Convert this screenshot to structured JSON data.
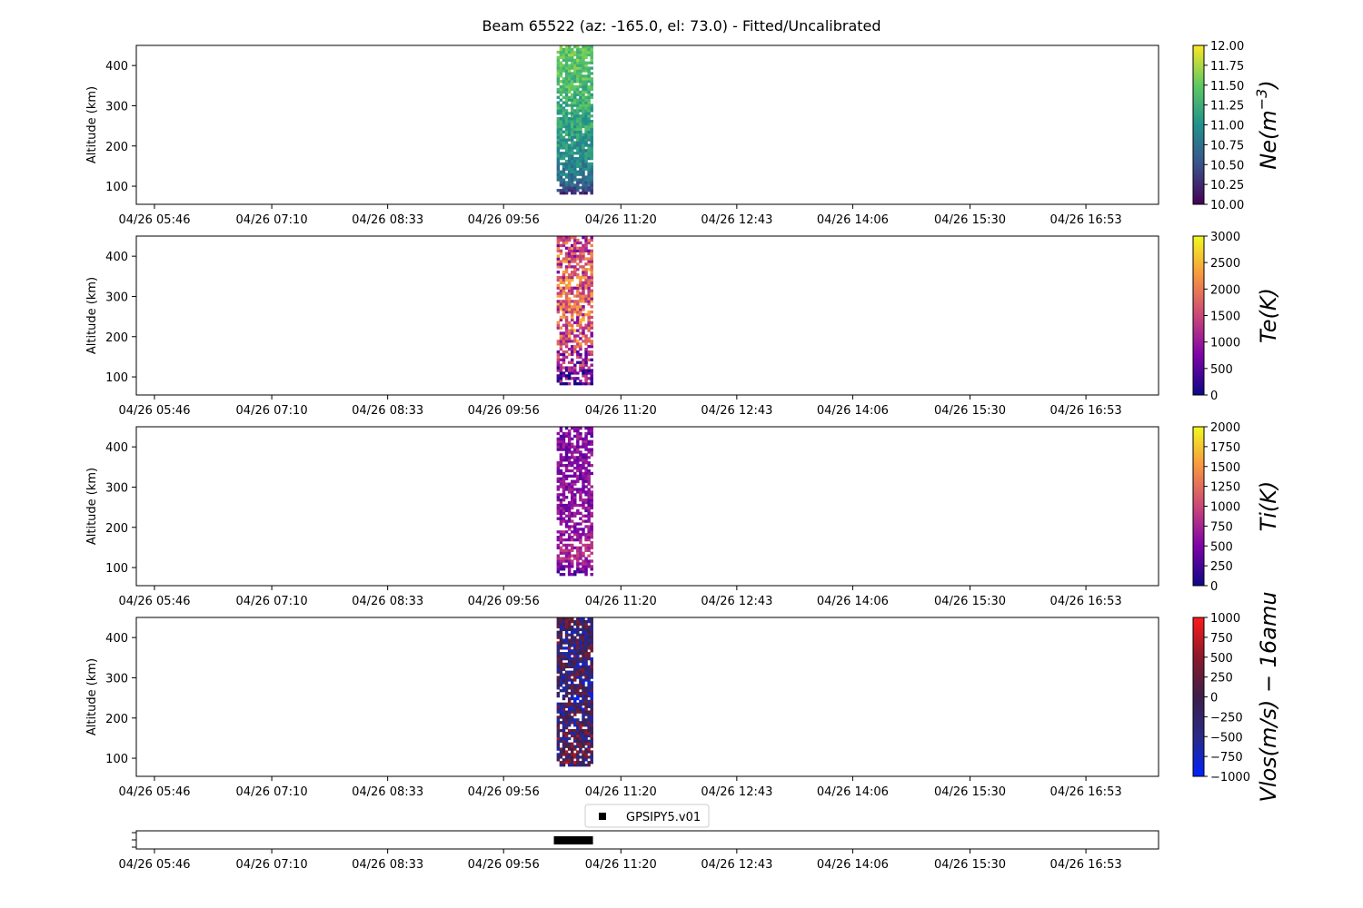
{
  "chart_data": {
    "title": "Beam 65522 (az: -165.0, el: 73.0) - Fitted/Uncalibrated",
    "x_tick_labels": [
      "04/26 05:46",
      "04/26 07:10",
      "04/26 08:33",
      "04/26 09:56",
      "04/26 11:20",
      "04/26 12:43",
      "04/26 14:06",
      "04/26 15:30",
      "04/26 16:53"
    ],
    "x_range": [
      "04/26 05:33",
      "04/26 17:45"
    ],
    "data_time_range": [
      "04/26 10:34",
      "04/26 11:00"
    ],
    "altitude_range_km": [
      80,
      450
    ],
    "panels": [
      {
        "type": "heatmap",
        "ylabel": "Altitude (km)",
        "yticks": [
          100,
          200,
          300,
          400
        ],
        "ylim": [
          55,
          450
        ],
        "colorbar": {
          "label": "Ne(m^-3)",
          "label_parts": [
            "Ne(m",
            "−3",
            ")"
          ],
          "range": [
            10,
            12
          ],
          "ticks": [
            "10.00",
            "10.25",
            "10.50",
            "10.75",
            "11.00",
            "11.25",
            "11.50",
            "11.75",
            "12.00"
          ],
          "colormap": [
            "#440154",
            "#3b528b",
            "#21918c",
            "#5ec962",
            "#fde725"
          ]
        },
        "profile": [
          {
            "alt": 85,
            "value": 10.2
          },
          {
            "alt": 100,
            "value": 10.6
          },
          {
            "alt": 150,
            "value": 10.9
          },
          {
            "alt": 200,
            "value": 11.05
          },
          {
            "alt": 250,
            "value": 11.2
          },
          {
            "alt": 300,
            "value": 11.25
          },
          {
            "alt": 350,
            "value": 11.35
          },
          {
            "alt": 400,
            "value": 11.45
          },
          {
            "alt": 450,
            "value": 11.5
          }
        ],
        "spread": 0.25,
        "missing_fraction": 0.15
      },
      {
        "type": "heatmap",
        "ylabel": "Altitude (km)",
        "yticks": [
          100,
          200,
          300,
          400
        ],
        "ylim": [
          55,
          450
        ],
        "colorbar": {
          "label": "Te(K)",
          "range": [
            0,
            3000
          ],
          "ticks": [
            "0",
            "500",
            "1000",
            "1500",
            "2000",
            "2500",
            "3000"
          ],
          "colormap": [
            "#0d0887",
            "#7e03a8",
            "#cc4778",
            "#f89540",
            "#f0f921"
          ]
        },
        "profile": [
          {
            "alt": 85,
            "value": 600
          },
          {
            "alt": 100,
            "value": 600
          },
          {
            "alt": 130,
            "value": 1000
          },
          {
            "alt": 200,
            "value": 1600
          },
          {
            "alt": 300,
            "value": 1700
          },
          {
            "alt": 450,
            "value": 1500
          }
        ],
        "spread": 900,
        "missing_fraction": 0.3
      },
      {
        "type": "heatmap",
        "ylabel": "Altitude (km)",
        "yticks": [
          100,
          200,
          300,
          400
        ],
        "ylim": [
          55,
          450
        ],
        "colorbar": {
          "label": "Ti(K)",
          "range": [
            0,
            2000
          ],
          "ticks": [
            "0",
            "250",
            "500",
            "750",
            "1000",
            "1250",
            "1500",
            "1750",
            "2000"
          ],
          "colormap": [
            "#0d0887",
            "#7e03a8",
            "#cc4778",
            "#f89540",
            "#f0f921"
          ]
        },
        "profile": [
          {
            "alt": 85,
            "value": 300
          },
          {
            "alt": 100,
            "value": 500
          },
          {
            "alt": 130,
            "value": 800
          },
          {
            "alt": 200,
            "value": 600
          },
          {
            "alt": 300,
            "value": 550
          },
          {
            "alt": 450,
            "value": 550
          }
        ],
        "spread": 250,
        "missing_fraction": 0.35
      },
      {
        "type": "heatmap",
        "ylabel": "Altitude (km)",
        "yticks": [
          100,
          200,
          300,
          400
        ],
        "ylim": [
          55,
          450
        ],
        "colorbar": {
          "label": "Vlos(m/s) − 16amu",
          "range": [
            -1000,
            1000
          ],
          "ticks": [
            "−1000",
            "−750",
            "−500",
            "−250",
            "0",
            "250",
            "500",
            "750",
            "1000"
          ],
          "colormap": [
            "#0021ff",
            "#2a2a86",
            "#3d1f4a",
            "#8b1a2a",
            "#ff1a1a"
          ]
        },
        "profile": [
          {
            "alt": 85,
            "value": 0
          },
          {
            "alt": 150,
            "value": -50
          },
          {
            "alt": 250,
            "value": -300
          },
          {
            "alt": 350,
            "value": -200
          },
          {
            "alt": 450,
            "value": -100
          }
        ],
        "spread": 700,
        "missing_fraction": 0.15
      }
    ],
    "timeline": {
      "type": "bar",
      "legend": "GPSIPY5.v01",
      "legend_placement": "above-center",
      "span": [
        "04/26 10:32",
        "04/26 11:00"
      ]
    }
  }
}
